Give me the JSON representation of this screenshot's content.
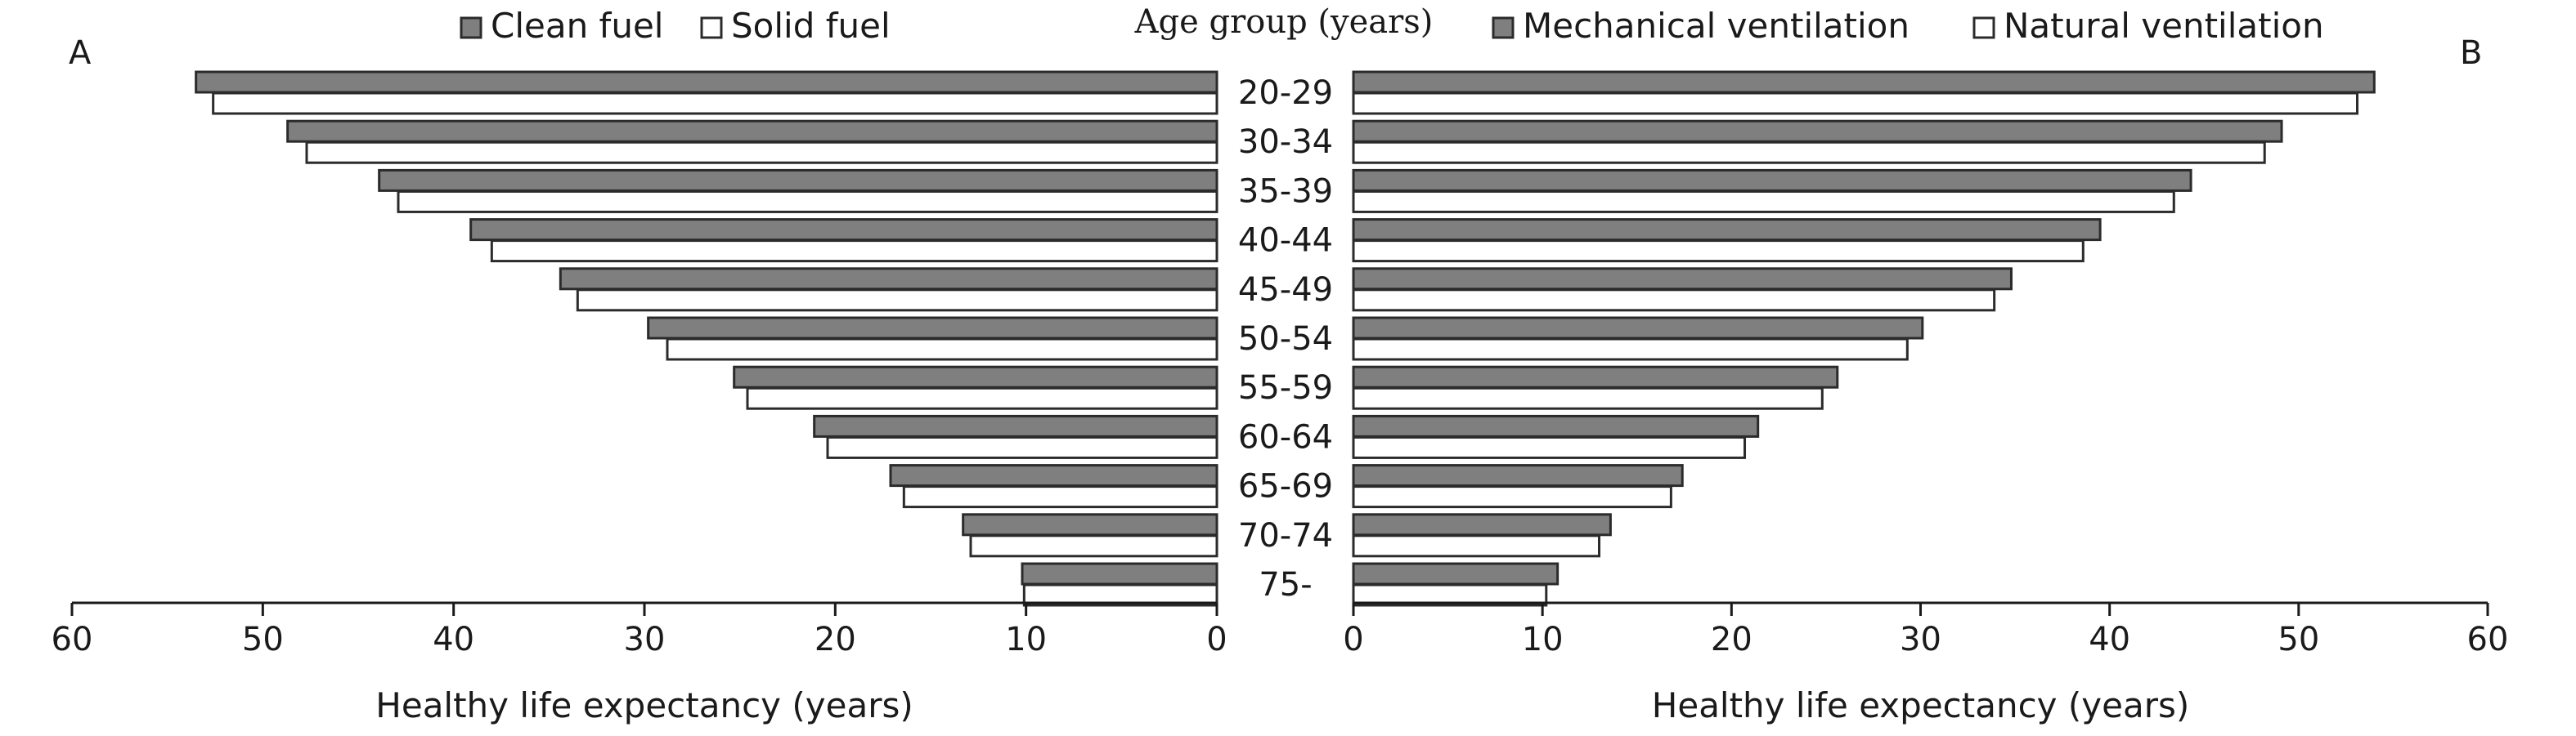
{
  "chart_data": {
    "type": "bar",
    "orientation": "horizontal",
    "layout": "back-to-back",
    "center_title": "Age group (years)",
    "categories": [
      "20-29",
      "30-34",
      "35-39",
      "40-44",
      "45-49",
      "50-54",
      "55-59",
      "60-64",
      "65-69",
      "70-74",
      "75-"
    ],
    "panels": [
      {
        "label": "A",
        "xlabel": "Healthy life expectancy (years)",
        "xlim": [
          0,
          60
        ],
        "x_ticks": [
          "60",
          "50",
          "40",
          "30",
          "20",
          "10",
          "0"
        ],
        "reversed": true,
        "legend_position": "top-center",
        "series": [
          {
            "name": "Clean fuel",
            "color": "#7f7f7f",
            "values": [
              53.5,
              48.7,
              43.9,
              39.1,
              34.4,
              29.8,
              25.3,
              21.1,
              17.1,
              13.3,
              10.2
            ]
          },
          {
            "name": "Solid fuel",
            "color": "#ffffff",
            "values": [
              52.6,
              47.7,
              42.9,
              38.0,
              33.5,
              28.8,
              24.6,
              20.4,
              16.4,
              12.9,
              10.1
            ]
          }
        ]
      },
      {
        "label": "B",
        "xlabel": "Healthy life expectancy (years)",
        "xlim": [
          0,
          60
        ],
        "x_ticks": [
          "0",
          "10",
          "20",
          "30",
          "40",
          "50",
          "60"
        ],
        "reversed": false,
        "legend_position": "top-center",
        "series": [
          {
            "name": "Mechanical ventilation",
            "color": "#7f7f7f",
            "values": [
              54.0,
              49.1,
              44.3,
              39.5,
              34.8,
              30.1,
              25.6,
              21.4,
              17.4,
              13.6,
              10.8
            ]
          },
          {
            "name": "Natural ventilation",
            "color": "#ffffff",
            "values": [
              53.1,
              48.2,
              43.4,
              38.6,
              33.9,
              29.3,
              24.8,
              20.7,
              16.8,
              13.0,
              10.2
            ]
          }
        ]
      }
    ]
  }
}
